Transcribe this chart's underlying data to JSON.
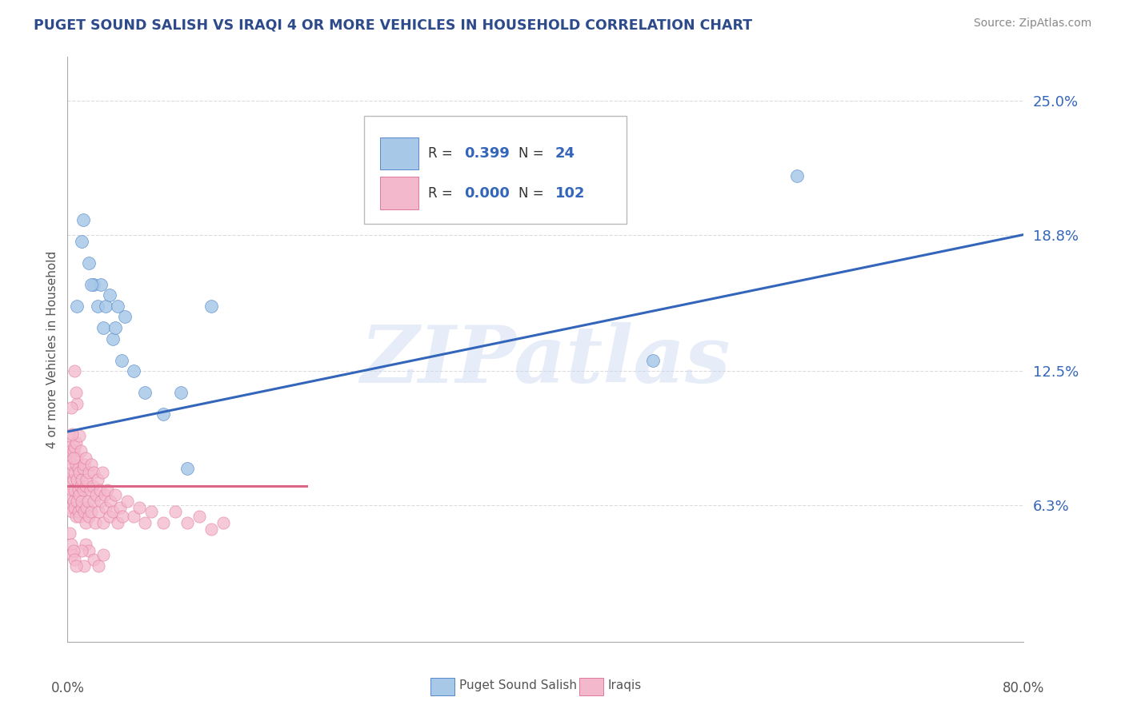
{
  "title": "PUGET SOUND SALISH VS IRAQI 4 OR MORE VEHICLES IN HOUSEHOLD CORRELATION CHART",
  "source": "Source: ZipAtlas.com",
  "ylabel": "4 or more Vehicles in Household",
  "xlim": [
    0.0,
    0.8
  ],
  "ylim": [
    0.0,
    0.27
  ],
  "ytick_labels": [
    "6.3%",
    "12.5%",
    "18.8%",
    "25.0%"
  ],
  "ytick_positions": [
    0.063,
    0.125,
    0.188,
    0.25
  ],
  "grid_color": "#cccccc",
  "background_color": "#ffffff",
  "title_color": "#2d4a8a",
  "watermark": "ZIPatlas",
  "legend_blue_label": "Puget Sound Salish",
  "legend_pink_label": "Iraqis",
  "blue_R": "0.399",
  "blue_N": "24",
  "pink_R": "0.000",
  "pink_N": "102",
  "blue_color": "#a8c8e8",
  "blue_edge_color": "#5588cc",
  "blue_line_color": "#3366bb",
  "pink_color": "#f4b8cc",
  "pink_edge_color": "#e07898",
  "pink_line_color": "#dd6688",
  "legend_text_color": "#333333",
  "legend_num_color": "#3366bb",
  "blue_scatter_x": [
    0.008,
    0.012,
    0.018,
    0.022,
    0.025,
    0.028,
    0.03,
    0.032,
    0.035,
    0.038,
    0.04,
    0.042,
    0.045,
    0.048,
    0.055,
    0.065,
    0.08,
    0.095,
    0.1,
    0.12,
    0.49,
    0.61,
    0.013,
    0.02
  ],
  "blue_scatter_y": [
    0.155,
    0.185,
    0.175,
    0.165,
    0.155,
    0.165,
    0.145,
    0.155,
    0.16,
    0.14,
    0.145,
    0.155,
    0.13,
    0.15,
    0.125,
    0.115,
    0.105,
    0.115,
    0.08,
    0.155,
    0.13,
    0.215,
    0.195,
    0.165
  ],
  "pink_scatter_x": [
    0.001,
    0.001,
    0.002,
    0.002,
    0.002,
    0.003,
    0.003,
    0.003,
    0.004,
    0.004,
    0.004,
    0.005,
    0.005,
    0.005,
    0.006,
    0.006,
    0.006,
    0.006,
    0.007,
    0.007,
    0.007,
    0.008,
    0.008,
    0.008,
    0.009,
    0.009,
    0.009,
    0.01,
    0.01,
    0.01,
    0.011,
    0.011,
    0.012,
    0.012,
    0.012,
    0.013,
    0.013,
    0.014,
    0.014,
    0.015,
    0.015,
    0.015,
    0.016,
    0.016,
    0.017,
    0.018,
    0.018,
    0.019,
    0.02,
    0.02,
    0.021,
    0.022,
    0.022,
    0.023,
    0.024,
    0.025,
    0.026,
    0.027,
    0.028,
    0.029,
    0.03,
    0.031,
    0.032,
    0.033,
    0.035,
    0.036,
    0.038,
    0.04,
    0.042,
    0.044,
    0.046,
    0.05,
    0.055,
    0.06,
    0.065,
    0.07,
    0.08,
    0.09,
    0.1,
    0.11,
    0.12,
    0.13,
    0.015,
    0.018,
    0.022,
    0.026,
    0.03,
    0.008,
    0.01,
    0.012,
    0.014,
    0.003,
    0.004,
    0.005,
    0.006,
    0.007,
    0.002,
    0.003,
    0.004,
    0.005,
    0.006,
    0.007
  ],
  "pink_scatter_y": [
    0.09,
    0.075,
    0.085,
    0.068,
    0.095,
    0.078,
    0.062,
    0.088,
    0.07,
    0.082,
    0.06,
    0.075,
    0.088,
    0.065,
    0.078,
    0.062,
    0.09,
    0.07,
    0.082,
    0.058,
    0.092,
    0.075,
    0.065,
    0.085,
    0.07,
    0.06,
    0.08,
    0.068,
    0.078,
    0.058,
    0.072,
    0.088,
    0.062,
    0.075,
    0.065,
    0.08,
    0.07,
    0.06,
    0.082,
    0.072,
    0.055,
    0.085,
    0.062,
    0.075,
    0.065,
    0.078,
    0.058,
    0.07,
    0.082,
    0.06,
    0.072,
    0.065,
    0.078,
    0.055,
    0.068,
    0.075,
    0.06,
    0.07,
    0.065,
    0.078,
    0.055,
    0.068,
    0.062,
    0.07,
    0.058,
    0.065,
    0.06,
    0.068,
    0.055,
    0.062,
    0.058,
    0.065,
    0.058,
    0.062,
    0.055,
    0.06,
    0.055,
    0.06,
    0.055,
    0.058,
    0.052,
    0.055,
    0.045,
    0.042,
    0.038,
    0.035,
    0.04,
    0.11,
    0.095,
    0.042,
    0.035,
    0.108,
    0.096,
    0.085,
    0.125,
    0.115,
    0.05,
    0.045,
    0.04,
    0.042,
    0.038,
    0.035
  ],
  "blue_trend_x": [
    0.0,
    0.8
  ],
  "blue_trend_y": [
    0.097,
    0.188
  ],
  "pink_trend_x": [
    0.0,
    0.2
  ],
  "pink_trend_y": [
    0.072,
    0.072
  ]
}
